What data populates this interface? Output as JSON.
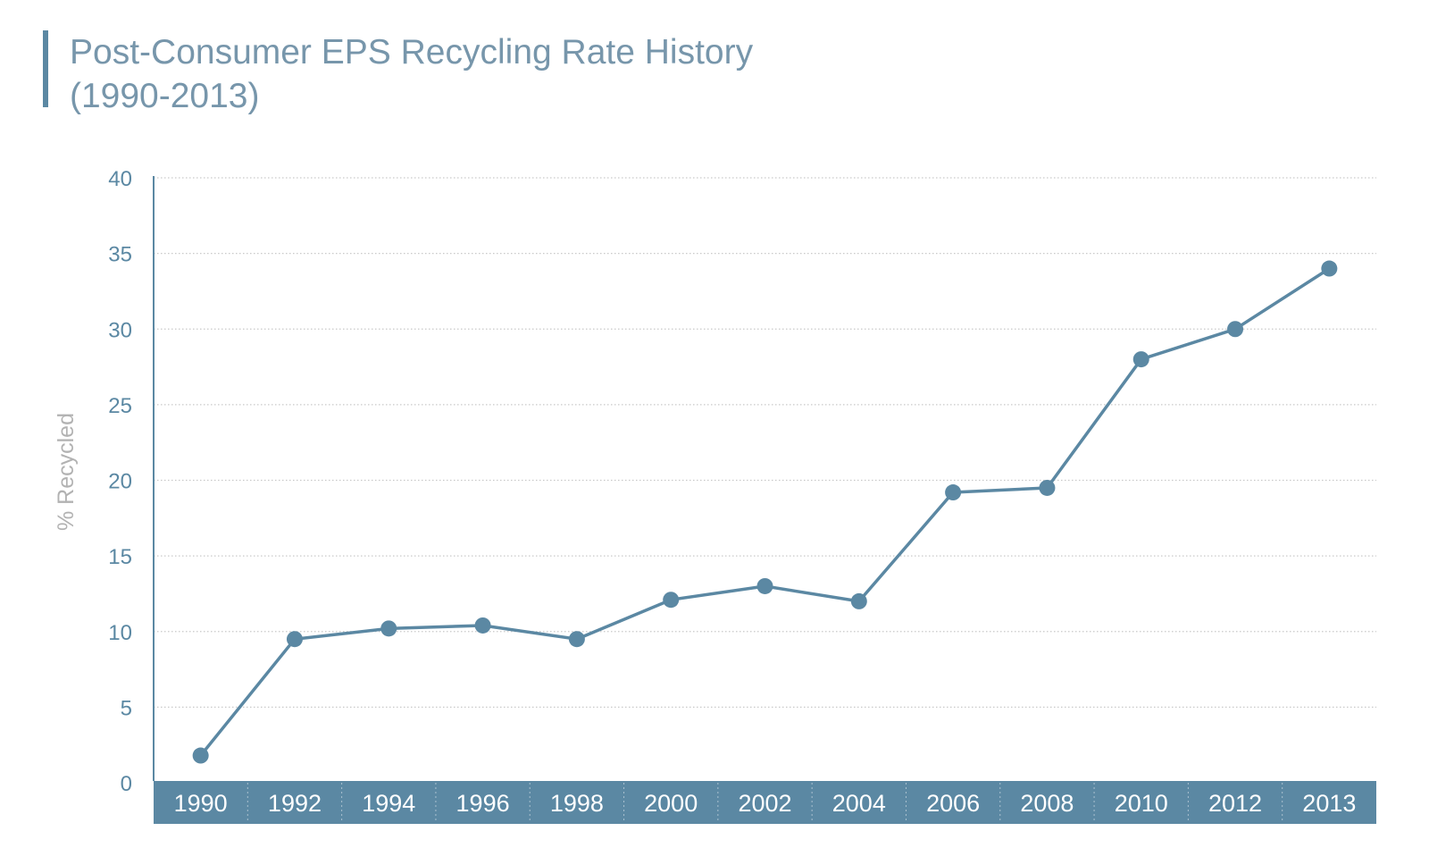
{
  "chart_data": {
    "type": "line",
    "title_lines": [
      "Post-Consumer EPS Recycling Rate History",
      "(1990-2013)"
    ],
    "xlabel": "",
    "ylabel": "% Recycled",
    "categories": [
      "1990",
      "1992",
      "1994",
      "1996",
      "1998",
      "2000",
      "2002",
      "2004",
      "2006",
      "2008",
      "2010",
      "2012",
      "2013"
    ],
    "series": [
      {
        "values": [
          1.8,
          9.5,
          10.2,
          10.4,
          9.5,
          12.1,
          13.0,
          12.0,
          19.2,
          19.5,
          28.0,
          30.0,
          34.0
        ]
      }
    ],
    "yticks": [
      0,
      5,
      10,
      15,
      20,
      25,
      30,
      35,
      40
    ],
    "ylim": [
      0,
      40
    ],
    "grid": "horizontal dotted",
    "legend": "none",
    "colors": {
      "line": "#5b88a3",
      "axis_band": "#5b88a3",
      "tick_text": "#5b88a3",
      "title_text": "#7796ab",
      "ylabel_text": "#b2b2b2",
      "grid": "#c9c9c9"
    }
  }
}
